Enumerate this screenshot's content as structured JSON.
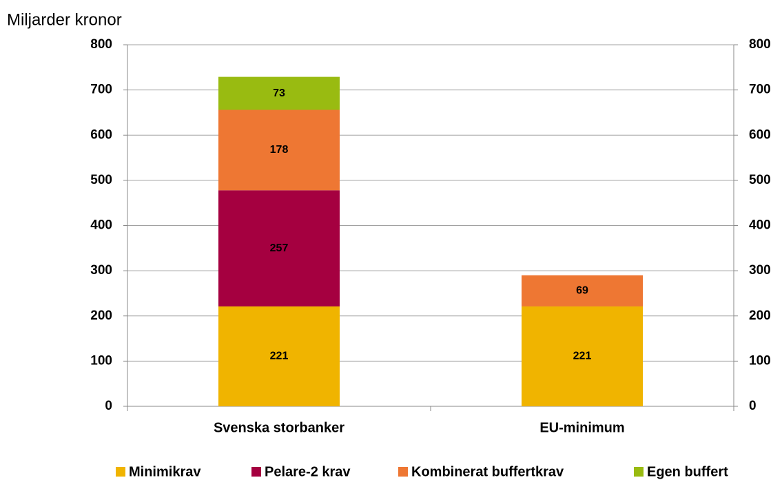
{
  "chart_data": {
    "type": "stacked_bar",
    "axis_label": "Miljarder kronor",
    "categories": [
      "Svenska storbanker",
      "EU-minimum"
    ],
    "series": [
      {
        "name": "Minimikrav",
        "color": "#f0b400",
        "values": [
          221,
          221
        ]
      },
      {
        "name": "Pelare-2 krav",
        "color": "#a50040",
        "values": [
          257,
          null
        ]
      },
      {
        "name": "Kombinerat buffertkrav",
        "color": "#ee7733",
        "values": [
          178,
          69
        ]
      },
      {
        "name": "Egen buffert",
        "color": "#99bb11",
        "values": [
          73,
          null
        ]
      }
    ],
    "ylim": [
      0,
      800
    ],
    "yticks": [
      0,
      100,
      200,
      300,
      400,
      500,
      600,
      700,
      800
    ],
    "y2lim": [
      0,
      800
    ],
    "y2ticks": [
      0,
      100,
      200,
      300,
      400,
      500,
      600,
      700,
      800
    ],
    "grid": true,
    "legend": "bottom"
  }
}
